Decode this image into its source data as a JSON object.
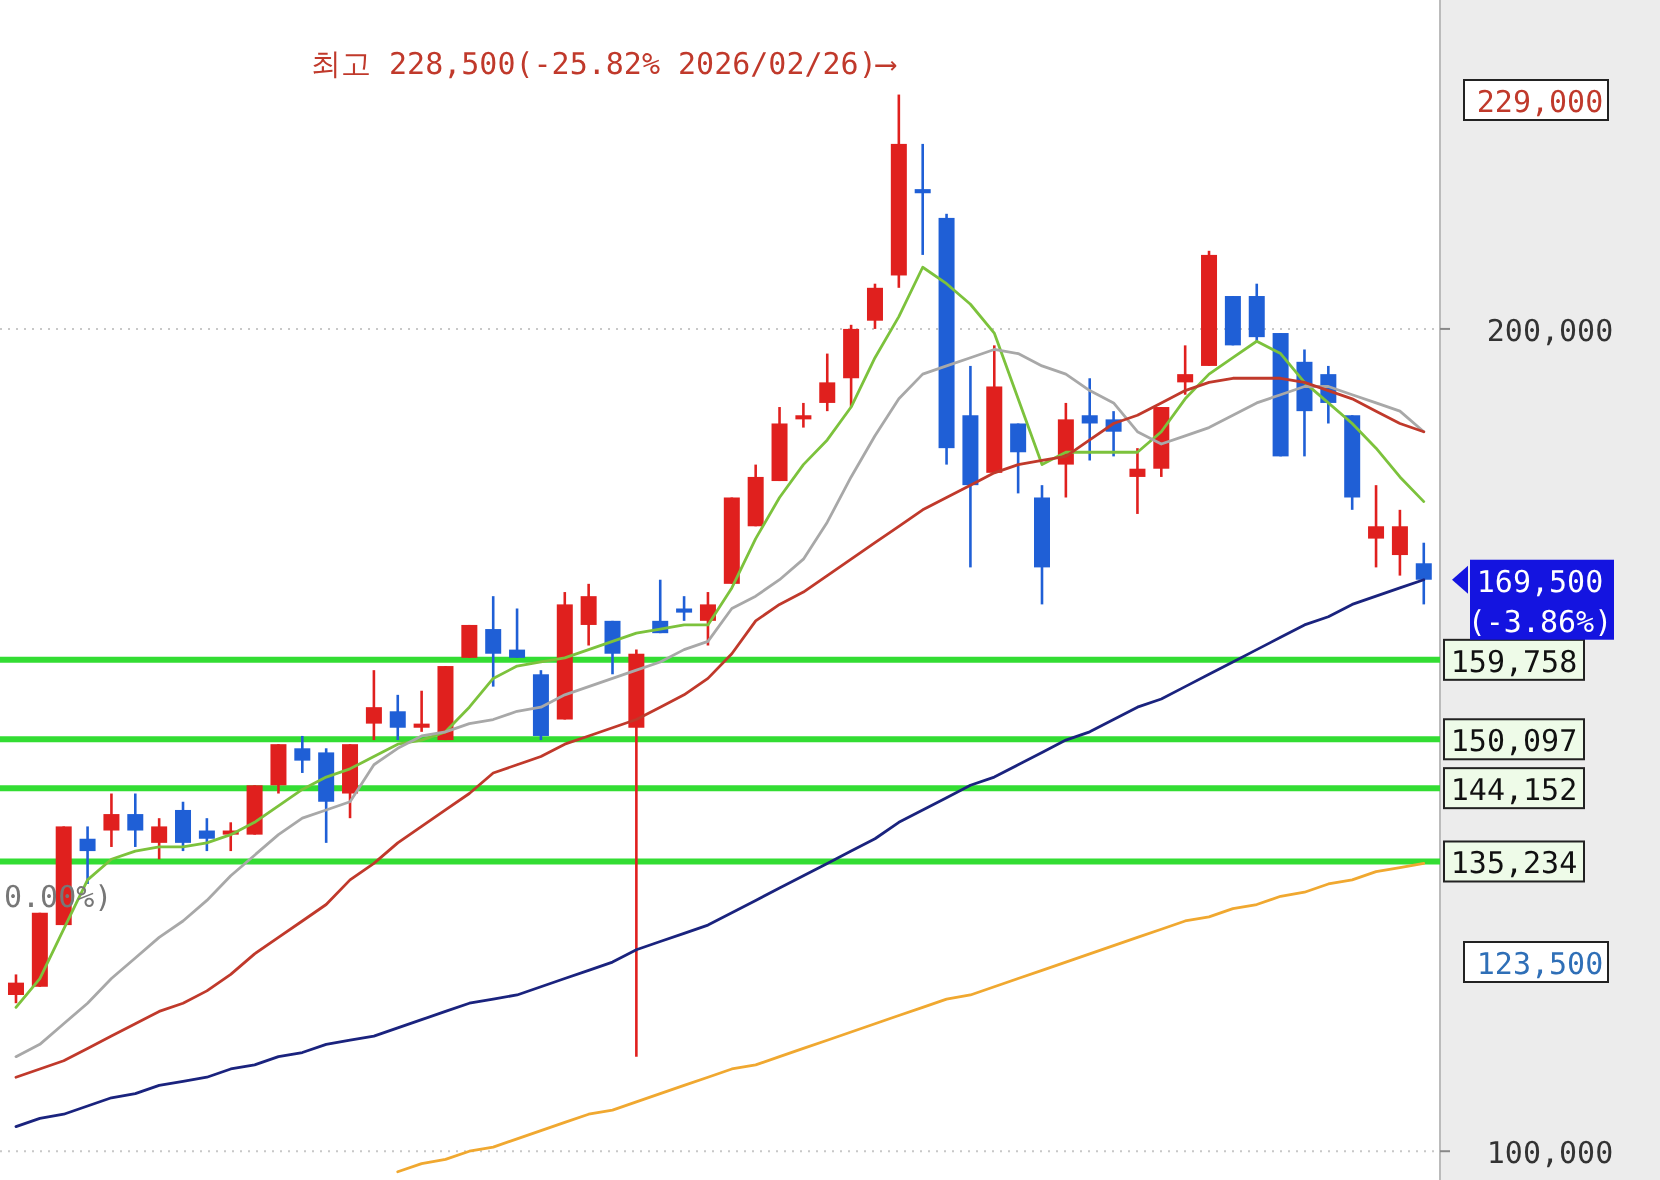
{
  "chart_data": {
    "type": "candlestick",
    "categories": [
      null,
      null,
      null,
      null,
      null,
      null,
      null,
      null,
      null,
      null,
      null,
      null,
      null,
      null,
      null,
      null,
      null,
      null,
      null,
      null,
      null,
      null,
      null,
      null,
      null,
      null,
      null,
      null,
      null,
      null,
      null,
      null,
      null,
      null,
      null,
      null,
      null,
      null,
      null,
      null,
      null,
      null,
      null,
      null,
      null,
      null,
      null,
      null,
      null,
      null,
      null,
      null,
      null,
      null,
      null,
      null,
      null,
      null,
      null,
      null
    ],
    "ohlc": [
      [
        119000,
        121500,
        118000,
        120500
      ],
      [
        120000,
        129000,
        120000,
        129000
      ],
      [
        127500,
        139500,
        127500,
        139500
      ],
      [
        138000,
        139500,
        132500,
        136500
      ],
      [
        139000,
        143500,
        137000,
        141000
      ],
      [
        141000,
        143500,
        137000,
        139000
      ],
      [
        137500,
        140500,
        135500,
        139500
      ],
      [
        141500,
        142500,
        136500,
        137500
      ],
      [
        139000,
        140500,
        136500,
        138000
      ],
      [
        138500,
        140000,
        136500,
        139000
      ],
      [
        138500,
        144500,
        138500,
        144500
      ],
      [
        144500,
        149500,
        143500,
        149500
      ],
      [
        149000,
        150500,
        146000,
        147500
      ],
      [
        148500,
        149000,
        137500,
        142500
      ],
      [
        143500,
        149500,
        140500,
        149500
      ],
      [
        152000,
        158500,
        150000,
        154000
      ],
      [
        153500,
        155500,
        150000,
        151500
      ],
      [
        151500,
        156000,
        151000,
        152000
      ],
      [
        150000,
        159000,
        150000,
        159000
      ],
      [
        160000,
        164000,
        160000,
        164000
      ],
      [
        163500,
        167500,
        156500,
        160500
      ],
      [
        161000,
        166000,
        160000,
        160000
      ],
      [
        158000,
        158500,
        150000,
        150500
      ],
      [
        152500,
        168000,
        152500,
        166500
      ],
      [
        164000,
        169000,
        161500,
        167500
      ],
      [
        164500,
        164500,
        158000,
        160500
      ],
      [
        151500,
        161000,
        111500,
        160500
      ],
      [
        164500,
        169500,
        163000,
        163000
      ],
      [
        166000,
        167500,
        164500,
        165500
      ],
      [
        164500,
        168000,
        161500,
        166500
      ],
      [
        169000,
        179500,
        169000,
        179500
      ],
      [
        176000,
        183500,
        176000,
        182000
      ],
      [
        181500,
        190500,
        181500,
        188500
      ],
      [
        189000,
        191000,
        188000,
        189500
      ],
      [
        191000,
        197000,
        190000,
        193500
      ],
      [
        194000,
        200500,
        190500,
        200000
      ],
      [
        201000,
        205500,
        200000,
        205000
      ],
      [
        206500,
        228500,
        205000,
        222500
      ],
      [
        217000,
        222500,
        209000,
        216500
      ],
      [
        213500,
        214000,
        183500,
        185500
      ],
      [
        189500,
        195500,
        171000,
        181000
      ],
      [
        182500,
        198000,
        182500,
        193000
      ],
      [
        188500,
        188500,
        180000,
        185000
      ],
      [
        179500,
        181000,
        166500,
        171000
      ],
      [
        183500,
        191000,
        179500,
        189000
      ],
      [
        189500,
        194000,
        184000,
        188500
      ],
      [
        189000,
        190000,
        184500,
        187500
      ],
      [
        182000,
        185500,
        177500,
        183000
      ],
      [
        183000,
        190500,
        182000,
        190500
      ],
      [
        193500,
        198000,
        192000,
        194500
      ],
      [
        195500,
        209500,
        195500,
        209000
      ],
      [
        204000,
        204000,
        198000,
        198000
      ],
      [
        204000,
        205500,
        198500,
        199000
      ],
      [
        199500,
        199500,
        184500,
        184500
      ],
      [
        196000,
        197500,
        184500,
        190000
      ],
      [
        194500,
        195500,
        188500,
        191000
      ],
      [
        189500,
        189500,
        178000,
        179500
      ],
      [
        174500,
        181000,
        171000,
        176000
      ],
      [
        172500,
        178000,
        170000,
        176000
      ],
      [
        171500,
        174000,
        166500,
        169500
      ]
    ],
    "series": [
      {
        "type": "line",
        "color": "#7cc23c",
        "values": [
          117500,
          121000,
          127000,
          133000,
          135500,
          136500,
          137000,
          137000,
          137500,
          138500,
          140000,
          142000,
          144000,
          145500,
          146500,
          148000,
          149500,
          150000,
          151000,
          154000,
          157500,
          159000,
          159500,
          160000,
          161000,
          162000,
          163000,
          163500,
          164000,
          164000,
          168500,
          174500,
          179500,
          183500,
          186500,
          190500,
          196500,
          201500,
          207500,
          205500,
          203000,
          199500,
          191500,
          183500,
          185000,
          185000,
          185000,
          185000,
          187500,
          191500,
          194500,
          196500,
          198500,
          197000,
          193500,
          191000,
          188500,
          185500,
          182000,
          179000
        ]
      },
      {
        "type": "line",
        "color": "#a8a8a8",
        "values": [
          111500,
          113000,
          115500,
          118000,
          121000,
          123500,
          126000,
          128000,
          130500,
          133500,
          136000,
          138500,
          140500,
          141500,
          142500,
          147000,
          149000,
          150500,
          151000,
          152000,
          152500,
          153500,
          154000,
          155500,
          156500,
          157500,
          158500,
          159500,
          161000,
          162000,
          166000,
          167500,
          169500,
          172000,
          176500,
          182000,
          187000,
          191500,
          194500,
          195500,
          196500,
          197500,
          197000,
          195500,
          194500,
          192500,
          191000,
          187500,
          186000,
          187000,
          188000,
          189500,
          191000,
          192000,
          193000,
          193000,
          192000,
          191000,
          190000,
          187500
        ]
      },
      {
        "type": "line",
        "color": "#c0392b",
        "values": [
          109000,
          110000,
          111000,
          112500,
          114000,
          115500,
          117000,
          118000,
          119500,
          121500,
          124000,
          126000,
          128000,
          130000,
          133000,
          135000,
          137500,
          139500,
          141500,
          143500,
          146000,
          147000,
          148000,
          149500,
          150500,
          151500,
          152500,
          154000,
          155500,
          157500,
          160500,
          164500,
          166500,
          168000,
          170000,
          172000,
          174000,
          176000,
          178000,
          179500,
          181000,
          182500,
          183500,
          184000,
          184500,
          186500,
          188500,
          189500,
          191000,
          192500,
          193500,
          194000,
          194000,
          194000,
          193500,
          192500,
          191500,
          190000,
          188500,
          187500
        ]
      },
      {
        "type": "line",
        "color": "#1a237e",
        "values": [
          103000,
          104000,
          104500,
          105500,
          106500,
          107000,
          108000,
          108500,
          109000,
          110000,
          110500,
          111500,
          112000,
          113000,
          113500,
          114000,
          115000,
          116000,
          117000,
          118000,
          118500,
          119000,
          120000,
          121000,
          122000,
          123000,
          124500,
          125500,
          126500,
          127500,
          129000,
          130500,
          132000,
          133500,
          135000,
          136500,
          138000,
          140000,
          141500,
          143000,
          144500,
          145500,
          147000,
          148500,
          150000,
          151000,
          152500,
          154000,
          155000,
          156500,
          158000,
          159500,
          161000,
          162500,
          164000,
          165000,
          166500,
          167500,
          168500,
          169500
        ]
      },
      {
        "type": "line",
        "color": "#f0a830",
        "values": [
          null,
          null,
          null,
          null,
          null,
          null,
          null,
          null,
          null,
          null,
          null,
          null,
          null,
          null,
          null,
          null,
          97500,
          98500,
          99000,
          100000,
          100500,
          101500,
          102500,
          103500,
          104500,
          105000,
          106000,
          107000,
          108000,
          109000,
          110000,
          110500,
          111500,
          112500,
          113500,
          114500,
          115500,
          116500,
          117500,
          118500,
          119000,
          120000,
          121000,
          122000,
          123000,
          124000,
          125000,
          126000,
          127000,
          128000,
          128500,
          129500,
          130000,
          131000,
          131500,
          132500,
          133000,
          134000,
          134500,
          135000
        ]
      }
    ],
    "ylim": [
      96500,
      240000
    ],
    "yticks": [
      {
        "value": 100000,
        "label": "100,000"
      },
      {
        "value": 200000,
        "label": "200,000"
      }
    ],
    "tick_labels": "y",
    "grid": "y",
    "ref_lines": [
      {
        "axis": "y",
        "value": 159758,
        "label": "159,758",
        "color": "#33dd33"
      },
      {
        "axis": "y",
        "value": 150097,
        "label": "150,097",
        "color": "#33dd33"
      },
      {
        "axis": "y",
        "value": 144152,
        "label": "144,152",
        "color": "#33dd33"
      },
      {
        "axis": "y",
        "value": 135234,
        "label": "135,234",
        "color": "#33dd33"
      }
    ],
    "annotations": [
      "최고 228,500(-25.82% 2026/02/26)⟶",
      {
        "text": "0.00%)",
        "y": 129500
      },
      "229,000",
      "169,500\n(-3.86%)",
      "123,500"
    ]
  }
}
